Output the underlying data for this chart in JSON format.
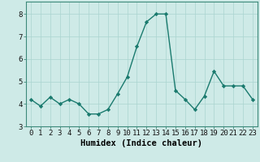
{
  "x": [
    0,
    1,
    2,
    3,
    4,
    5,
    6,
    7,
    8,
    9,
    10,
    11,
    12,
    13,
    14,
    15,
    16,
    17,
    18,
    19,
    20,
    21,
    22,
    23
  ],
  "y": [
    4.2,
    3.9,
    4.3,
    4.0,
    4.2,
    4.0,
    3.55,
    3.55,
    3.75,
    4.45,
    5.2,
    6.55,
    7.65,
    8.0,
    8.0,
    4.6,
    4.2,
    3.75,
    4.35,
    5.45,
    4.8,
    4.8,
    4.8,
    4.2
  ],
  "line_color": "#1a7a6e",
  "marker": "D",
  "marker_size": 2.2,
  "line_width": 1.0,
  "background_color": "#ceeae7",
  "grid_color": "#aad4cf",
  "xlabel": "Humidex (Indice chaleur)",
  "xlim": [
    -0.5,
    23.5
  ],
  "ylim": [
    3.0,
    8.55
  ],
  "yticks": [
    3,
    4,
    5,
    6,
    7,
    8
  ],
  "xticks": [
    0,
    1,
    2,
    3,
    4,
    5,
    6,
    7,
    8,
    9,
    10,
    11,
    12,
    13,
    14,
    15,
    16,
    17,
    18,
    19,
    20,
    21,
    22,
    23
  ],
  "xlabel_fontsize": 7.5,
  "tick_fontsize": 6.5,
  "spine_color": "#3d8a7a"
}
